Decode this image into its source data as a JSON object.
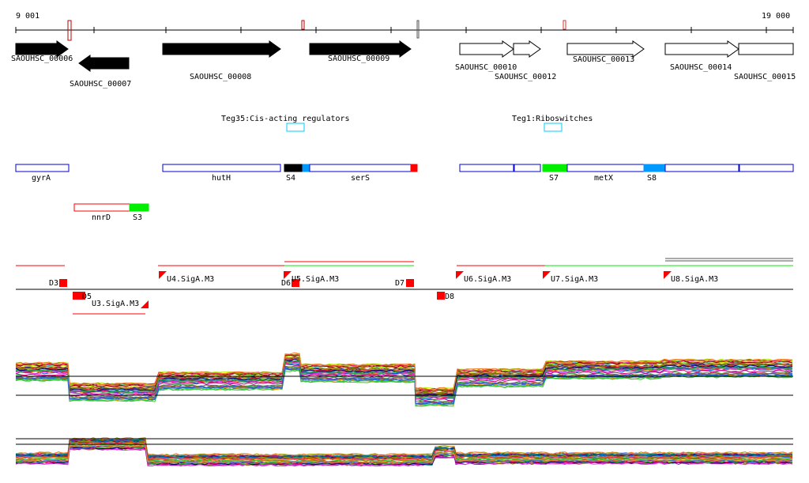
{
  "ruler": {
    "start_label": "9 001",
    "end_label": "19 000"
  },
  "genes": [
    "SAOUHSC_00006",
    "SAOUHSC_00007",
    "SAOUHSC_00008",
    "SAOUHSC_00009",
    "SAOUHSC_00010",
    "SAOUHSC_00012",
    "SAOUHSC_00013",
    "SAOUHSC_00014",
    "SAOUHSC_00015"
  ],
  "regulators": [
    "Teg35:Cis-acting regulators",
    "Teg1:Riboswitches"
  ],
  "features": [
    "gyrA",
    "hutH",
    "S4",
    "serS",
    "S7",
    "metX",
    "S8",
    "nnrD",
    "S3"
  ],
  "promoters": [
    "D3",
    "D5",
    "U3.SigA.M3",
    "U4.SigA.M3",
    "D6",
    "U5.SigA.M3",
    "D7",
    "D8",
    "U6.SigA.M3",
    "U7.SigA.M3",
    "U8.SigA.M3"
  ],
  "colors": {
    "red": "#ff0000",
    "green": "#00ee00",
    "blue": "#0000cc",
    "lightblue": "#0099ff",
    "cyan": "#00ccff"
  }
}
